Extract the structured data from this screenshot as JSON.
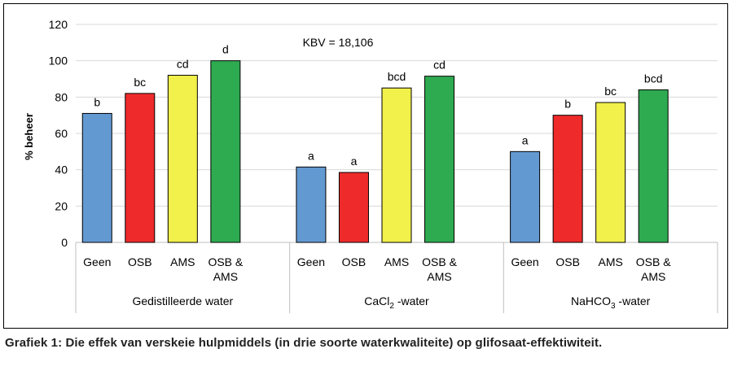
{
  "chart_data": {
    "type": "bar",
    "title": "",
    "ylabel": "% beheer",
    "ylim": [
      0,
      120
    ],
    "yticks": [
      0,
      20,
      40,
      60,
      80,
      100,
      120
    ],
    "annotation": "KBV = 18,106",
    "groups": [
      {
        "label": "Gedistilleerde water",
        "label_main": "Gedistilleerde water",
        "label_sub": "",
        "label_suffix": "",
        "bars": [
          {
            "category": "Geen",
            "value": 71,
            "letter": "b",
            "color": "#6399d1"
          },
          {
            "category": "OSB",
            "value": 82,
            "letter": "bc",
            "color": "#ee2a2a"
          },
          {
            "category": "AMS",
            "value": 92,
            "letter": "cd",
            "color": "#f2f04a"
          },
          {
            "category": "OSB & AMS",
            "value": 100,
            "letter": "d",
            "color": "#2eaa50"
          }
        ]
      },
      {
        "label": "CaCl2 -water",
        "label_main": "CaCl",
        "label_sub": "2",
        "label_suffix": " -water",
        "bars": [
          {
            "category": "Geen",
            "value": 41.5,
            "letter": "a",
            "color": "#6399d1"
          },
          {
            "category": "OSB",
            "value": 38.5,
            "letter": "a",
            "color": "#ee2a2a"
          },
          {
            "category": "AMS",
            "value": 85,
            "letter": "bcd",
            "color": "#f2f04a"
          },
          {
            "category": "OSB & AMS",
            "value": 91.5,
            "letter": "cd",
            "color": "#2eaa50"
          }
        ]
      },
      {
        "label": "NaHCO3 -water",
        "label_main": "NaHCO",
        "label_sub": "3",
        "label_suffix": " -water",
        "bars": [
          {
            "category": "Geen",
            "value": 50,
            "letter": "a",
            "color": "#6399d1"
          },
          {
            "category": "OSB",
            "value": 70,
            "letter": "b",
            "color": "#ee2a2a"
          },
          {
            "category": "AMS",
            "value": 77,
            "letter": "bc",
            "color": "#f2f04a"
          },
          {
            "category": "OSB & AMS",
            "value": 84,
            "letter": "bcd",
            "color": "#2eaa50"
          }
        ]
      }
    ]
  },
  "caption": "Grafiek 1: Die effek van verskeie hulpmiddels (in drie soorte waterkwaliteite) op glifosaat-effektiwiteit."
}
